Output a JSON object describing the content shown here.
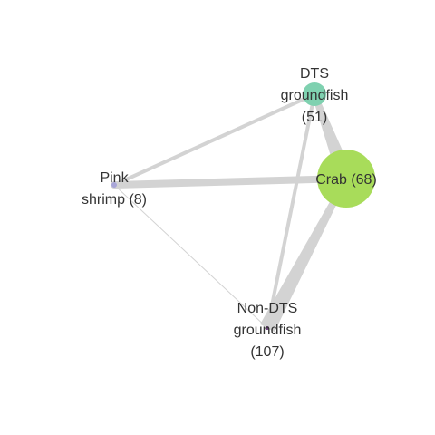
{
  "network": {
    "nodes": [
      {
        "id": "dts",
        "label_lines": [
          "DTS",
          "groundfish",
          "(51)"
        ],
        "value": 51,
        "color": "#7fd1b0"
      },
      {
        "id": "crab",
        "label_lines": [
          "Crab (68)"
        ],
        "value": 68,
        "color": "#a8dc5a"
      },
      {
        "id": "pink",
        "label_lines": [
          "Pink",
          "shrimp (8)"
        ],
        "value": 8,
        "color": "#a9a6d8"
      },
      {
        "id": "nondts",
        "label_lines": [
          "Non-DTS",
          "groundfish",
          "(107)"
        ],
        "value": 107,
        "color": "#6a3d7a"
      }
    ],
    "edges": [
      {
        "from": "dts",
        "to": "crab",
        "weight": "heavy"
      },
      {
        "from": "crab",
        "to": "nondts",
        "weight": "heavy"
      },
      {
        "from": "pink",
        "to": "crab",
        "weight": "medium"
      },
      {
        "from": "pink",
        "to": "dts",
        "weight": "light"
      },
      {
        "from": "dts",
        "to": "nondts",
        "weight": "light"
      },
      {
        "from": "pink",
        "to": "nondts",
        "weight": "hairline"
      }
    ],
    "edge_color": "#d3d3d3"
  }
}
